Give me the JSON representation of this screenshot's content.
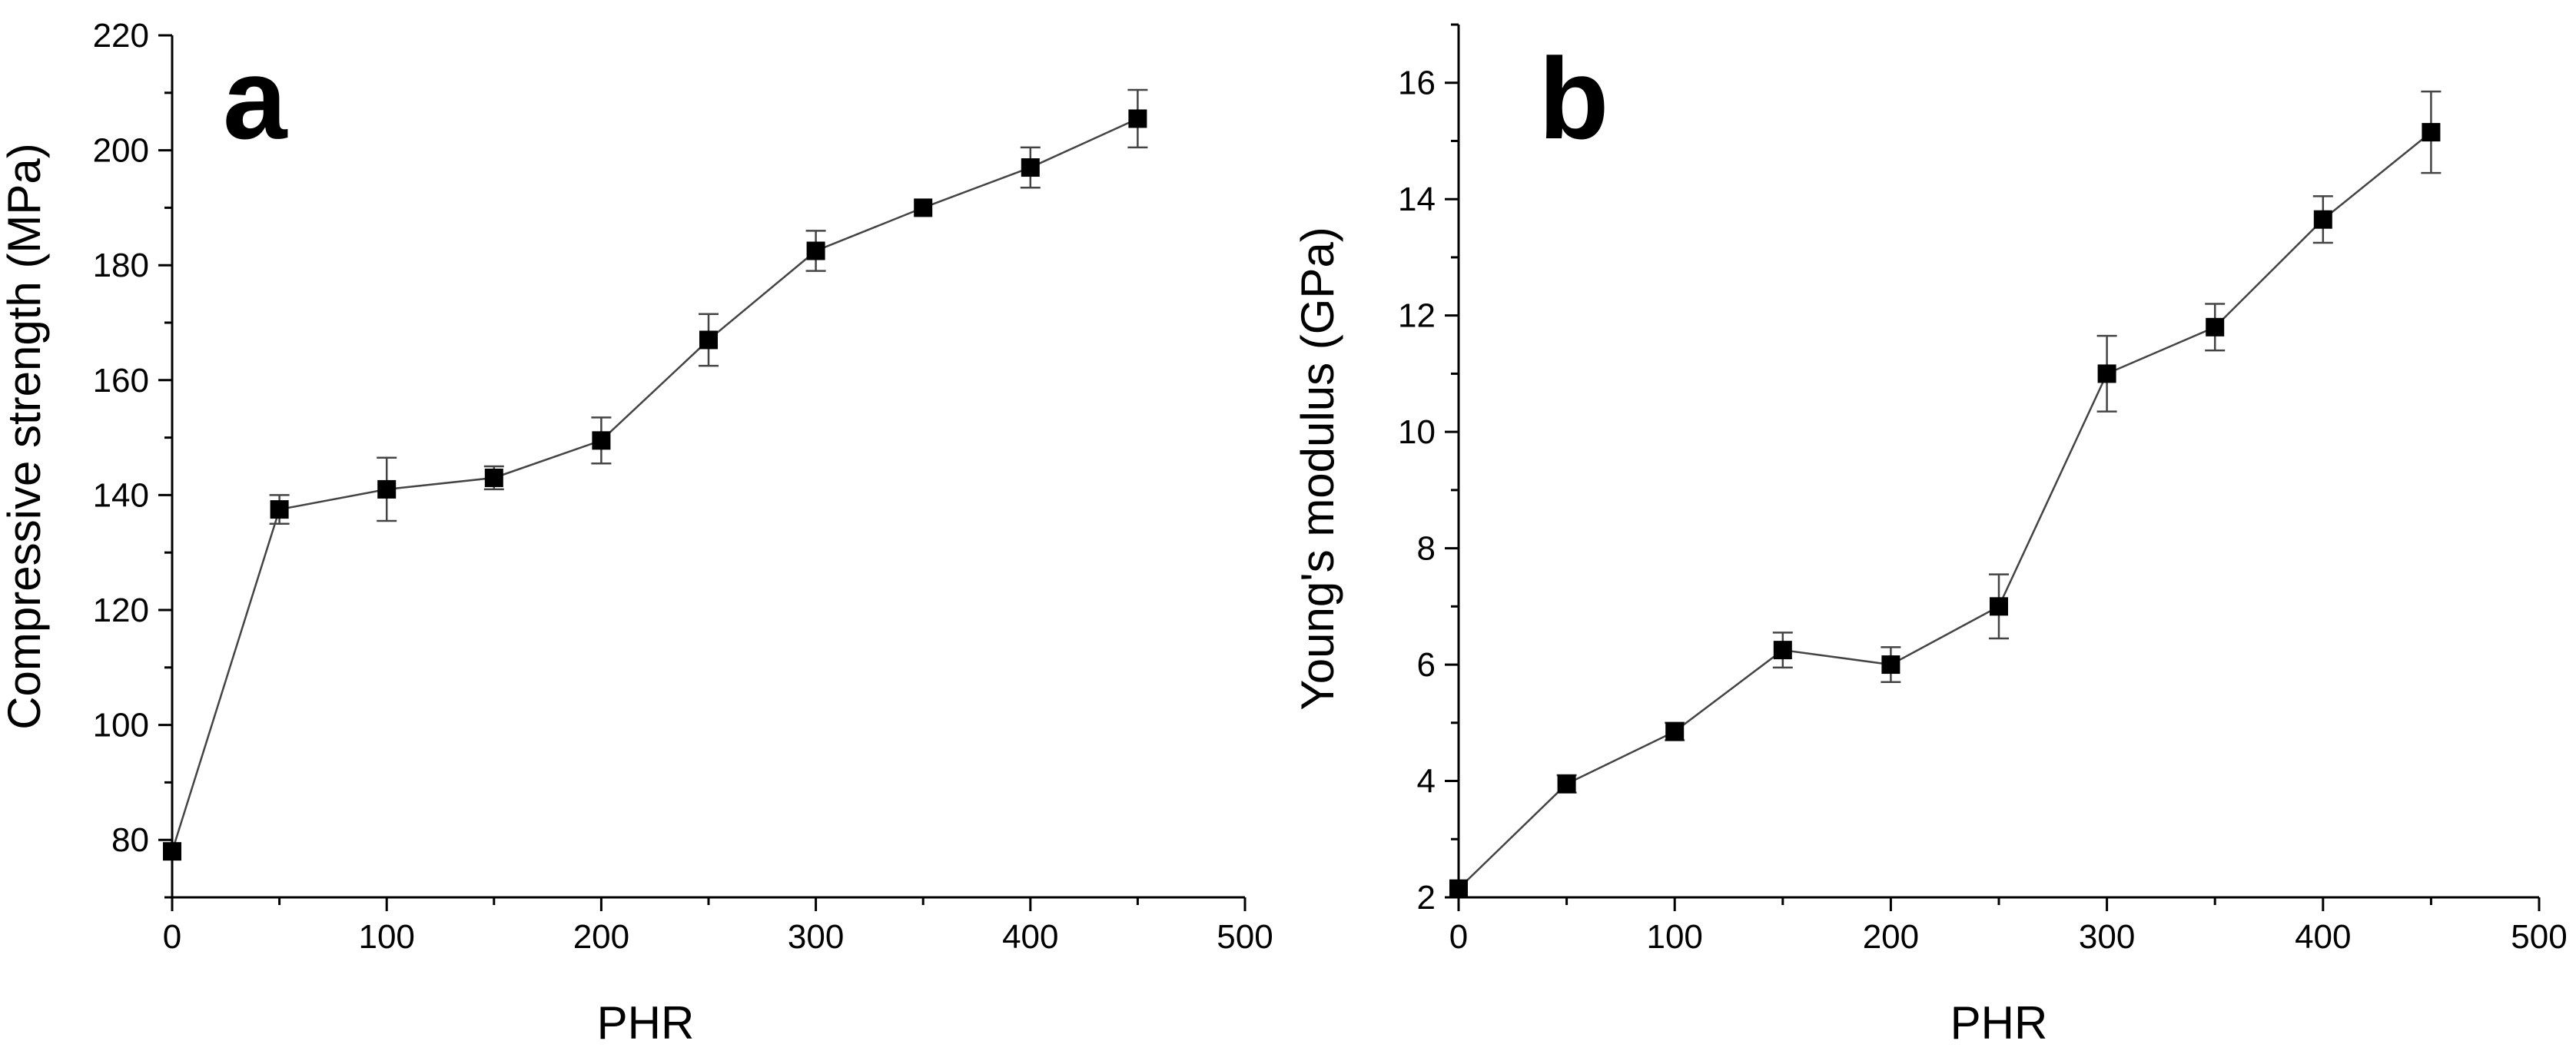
{
  "chart_data": [
    {
      "type": "line",
      "panel_label": "a",
      "xlabel": "PHR",
      "ylabel": "Compressive strength (MPa)",
      "xlim": [
        0,
        500
      ],
      "ylim": [
        70,
        220
      ],
      "xticks": [
        0,
        100,
        200,
        300,
        400,
        500
      ],
      "yticks": [
        80,
        100,
        120,
        140,
        160,
        180,
        200,
        220
      ],
      "grid": false,
      "marker": "square",
      "color": "#000000",
      "series": [
        {
          "name": "Compressive strength",
          "x": [
            0,
            50,
            100,
            150,
            200,
            250,
            300,
            350,
            400,
            450
          ],
          "y": [
            78,
            137.5,
            141,
            143,
            149.5,
            167,
            182.5,
            190,
            197,
            205.5
          ],
          "yerr": [
            0,
            2.5,
            5.5,
            2,
            4,
            4.5,
            3.5,
            0,
            3.5,
            5
          ]
        }
      ]
    },
    {
      "type": "line",
      "panel_label": "b",
      "xlabel": "PHR",
      "ylabel": "Young's modulus (GPa)",
      "xlim": [
        0,
        500
      ],
      "ylim": [
        2,
        17
      ],
      "xticks": [
        0,
        100,
        200,
        300,
        400,
        500
      ],
      "yticks": [
        2,
        4,
        6,
        8,
        10,
        12,
        14,
        16
      ],
      "grid": false,
      "marker": "square",
      "color": "#000000",
      "series": [
        {
          "name": "Young's modulus",
          "x": [
            0,
            50,
            100,
            150,
            200,
            250,
            300,
            350,
            400,
            450
          ],
          "y": [
            2.15,
            3.95,
            4.85,
            6.25,
            6.0,
            7.0,
            11.0,
            11.8,
            13.65,
            15.15
          ],
          "yerr": [
            0,
            0.15,
            0.15,
            0.3,
            0.3,
            0.55,
            0.65,
            0.4,
            0.4,
            0.7
          ]
        }
      ]
    }
  ]
}
